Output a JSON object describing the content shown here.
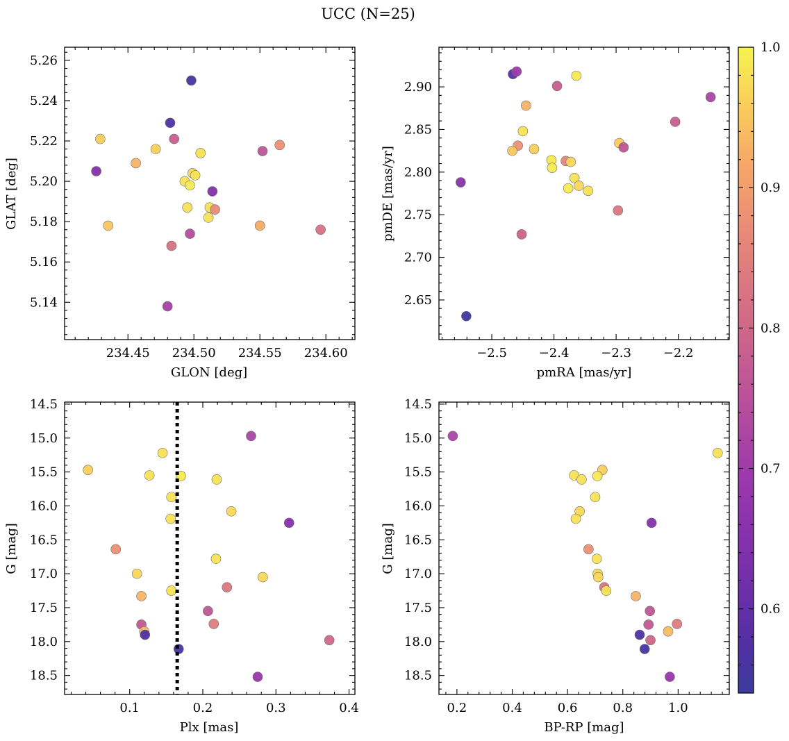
{
  "figure": {
    "title": "UCC (N=25)",
    "colormap": "plasma",
    "colorbar": {
      "min": 0.54,
      "max": 1.0,
      "ticks": [
        0.6,
        0.7,
        0.8,
        0.9,
        1.0
      ],
      "tick_labels": [
        "0.6",
        "0.7",
        "0.8",
        "0.9",
        "1.0"
      ]
    }
  },
  "chart_data": [
    {
      "id": "glon_glat",
      "type": "scatter",
      "xlabel": "GLON [deg]",
      "ylabel": "GLAT [deg]",
      "xlim": [
        234.402,
        234.622
      ],
      "ylim": [
        5.1215,
        5.2665
      ],
      "xticks": [
        234.45,
        234.5,
        234.55,
        234.6
      ],
      "xtick_labels": [
        "234.45",
        "234.50",
        "234.55",
        "234.60"
      ],
      "yticks": [
        5.14,
        5.16,
        5.18,
        5.2,
        5.22,
        5.24,
        5.26
      ],
      "ytick_labels": [
        "5.14",
        "5.16",
        "5.18",
        "5.20",
        "5.22",
        "5.24",
        "5.26"
      ],
      "points": [
        {
          "x": 234.498,
          "y": 5.25,
          "c": 0.56
        },
        {
          "x": 234.482,
          "y": 5.229,
          "c": 0.57
        },
        {
          "x": 234.426,
          "y": 5.205,
          "c": 0.65
        },
        {
          "x": 234.429,
          "y": 5.221,
          "c": 0.96
        },
        {
          "x": 234.485,
          "y": 5.221,
          "c": 0.78
        },
        {
          "x": 234.471,
          "y": 5.216,
          "c": 0.96
        },
        {
          "x": 234.505,
          "y": 5.214,
          "c": 0.98
        },
        {
          "x": 234.552,
          "y": 5.215,
          "c": 0.76
        },
        {
          "x": 234.565,
          "y": 5.218,
          "c": 0.88
        },
        {
          "x": 234.456,
          "y": 5.209,
          "c": 0.93
        },
        {
          "x": 234.499,
          "y": 5.204,
          "c": 0.97
        },
        {
          "x": 234.501,
          "y": 5.203,
          "c": 0.98
        },
        {
          "x": 234.493,
          "y": 5.2,
          "c": 0.98
        },
        {
          "x": 234.497,
          "y": 5.198,
          "c": 0.99
        },
        {
          "x": 234.514,
          "y": 5.195,
          "c": 0.65
        },
        {
          "x": 234.495,
          "y": 5.187,
          "c": 0.98
        },
        {
          "x": 234.512,
          "y": 5.187,
          "c": 0.98
        },
        {
          "x": 234.516,
          "y": 5.186,
          "c": 0.87
        },
        {
          "x": 234.511,
          "y": 5.182,
          "c": 0.98
        },
        {
          "x": 234.435,
          "y": 5.178,
          "c": 0.95
        },
        {
          "x": 234.55,
          "y": 5.178,
          "c": 0.92
        },
        {
          "x": 234.596,
          "y": 5.176,
          "c": 0.82
        },
        {
          "x": 234.497,
          "y": 5.174,
          "c": 0.74
        },
        {
          "x": 234.483,
          "y": 5.168,
          "c": 0.82
        },
        {
          "x": 234.48,
          "y": 5.138,
          "c": 0.71
        }
      ]
    },
    {
      "id": "pmra_pmde",
      "type": "scatter",
      "xlabel": "pmRA [mas/yr]",
      "ylabel": "pmDE [mas/yr]",
      "xlim": [
        -2.585,
        -2.118
      ],
      "ylim": [
        2.6035,
        2.9465
      ],
      "xticks": [
        -2.5,
        -2.4,
        -2.3,
        -2.2
      ],
      "xtick_labels": [
        "−2.5",
        "−2.4",
        "−2.3",
        "−2.2"
      ],
      "yticks": [
        2.65,
        2.7,
        2.75,
        2.8,
        2.85,
        2.9
      ],
      "ytick_labels": [
        "2.65",
        "2.70",
        "2.75",
        "2.80",
        "2.85",
        "2.90"
      ],
      "points": [
        {
          "x": -2.466,
          "y": 2.915,
          "c": 0.58
        },
        {
          "x": -2.46,
          "y": 2.918,
          "c": 0.7
        },
        {
          "x": -2.364,
          "y": 2.913,
          "c": 0.99
        },
        {
          "x": -2.395,
          "y": 2.901,
          "c": 0.78
        },
        {
          "x": -2.148,
          "y": 2.888,
          "c": 0.72
        },
        {
          "x": -2.445,
          "y": 2.878,
          "c": 0.93
        },
        {
          "x": -2.205,
          "y": 2.859,
          "c": 0.78
        },
        {
          "x": -2.45,
          "y": 2.848,
          "c": 0.98
        },
        {
          "x": -2.295,
          "y": 2.834,
          "c": 0.96
        },
        {
          "x": -2.288,
          "y": 2.829,
          "c": 0.76
        },
        {
          "x": -2.458,
          "y": 2.831,
          "c": 0.88
        },
        {
          "x": -2.467,
          "y": 2.825,
          "c": 0.95
        },
        {
          "x": -2.432,
          "y": 2.827,
          "c": 0.96
        },
        {
          "x": -2.404,
          "y": 2.814,
          "c": 0.99
        },
        {
          "x": -2.381,
          "y": 2.813,
          "c": 0.86
        },
        {
          "x": -2.373,
          "y": 2.812,
          "c": 0.97
        },
        {
          "x": -2.403,
          "y": 2.805,
          "c": 0.99
        },
        {
          "x": -2.367,
          "y": 2.793,
          "c": 0.98
        },
        {
          "x": -2.36,
          "y": 2.784,
          "c": 0.97
        },
        {
          "x": -2.377,
          "y": 2.781,
          "c": 0.99
        },
        {
          "x": -2.345,
          "y": 2.778,
          "c": 0.98
        },
        {
          "x": -2.55,
          "y": 2.788,
          "c": 0.66
        },
        {
          "x": -2.297,
          "y": 2.755,
          "c": 0.83
        },
        {
          "x": -2.452,
          "y": 2.727,
          "c": 0.79
        },
        {
          "x": -2.541,
          "y": 2.631,
          "c": 0.55
        }
      ]
    },
    {
      "id": "plx_g",
      "type": "scatter",
      "xlabel": "Plx [mas]",
      "ylabel": "G [mag]",
      "xlim": [
        0.011,
        0.408
      ],
      "ylim": [
        18.78,
        14.47
      ],
      "y_inverted": true,
      "xticks": [
        0.1,
        0.2,
        0.3,
        0.4
      ],
      "xtick_labels": [
        "0.1",
        "0.2",
        "0.3",
        "0.4"
      ],
      "yticks": [
        14.5,
        15.0,
        15.5,
        16.0,
        16.5,
        17.0,
        17.5,
        18.0,
        18.5
      ],
      "ytick_labels": [
        "14.5",
        "15.0",
        "15.5",
        "16.0",
        "16.5",
        "17.0",
        "17.5",
        "18.0",
        "18.5"
      ],
      "vline": {
        "x": 0.165,
        "style": "dotted"
      },
      "points": [
        {
          "x": 0.266,
          "y": 14.97,
          "c": 0.72
        },
        {
          "x": 0.145,
          "y": 15.22,
          "c": 0.98
        },
        {
          "x": 0.043,
          "y": 15.47,
          "c": 0.96
        },
        {
          "x": 0.127,
          "y": 15.55,
          "c": 0.98
        },
        {
          "x": 0.17,
          "y": 15.56,
          "c": 0.99
        },
        {
          "x": 0.219,
          "y": 15.61,
          "c": 0.98
        },
        {
          "x": 0.157,
          "y": 15.87,
          "c": 0.98
        },
        {
          "x": 0.239,
          "y": 16.08,
          "c": 0.97
        },
        {
          "x": 0.156,
          "y": 16.19,
          "c": 0.98
        },
        {
          "x": 0.318,
          "y": 16.25,
          "c": 0.65
        },
        {
          "x": 0.081,
          "y": 16.64,
          "c": 0.88
        },
        {
          "x": 0.218,
          "y": 16.78,
          "c": 0.98
        },
        {
          "x": 0.11,
          "y": 17.0,
          "c": 0.97
        },
        {
          "x": 0.282,
          "y": 17.05,
          "c": 0.97
        },
        {
          "x": 0.233,
          "y": 17.2,
          "c": 0.83
        },
        {
          "x": 0.157,
          "y": 17.25,
          "c": 0.98
        },
        {
          "x": 0.116,
          "y": 17.33,
          "c": 0.93
        },
        {
          "x": 0.207,
          "y": 17.55,
          "c": 0.76
        },
        {
          "x": 0.215,
          "y": 17.74,
          "c": 0.84
        },
        {
          "x": 0.116,
          "y": 17.75,
          "c": 0.77
        },
        {
          "x": 0.12,
          "y": 17.85,
          "c": 0.94
        },
        {
          "x": 0.121,
          "y": 17.9,
          "c": 0.57
        },
        {
          "x": 0.373,
          "y": 17.98,
          "c": 0.8
        },
        {
          "x": 0.167,
          "y": 18.11,
          "c": 0.56
        },
        {
          "x": 0.275,
          "y": 18.52,
          "c": 0.69
        }
      ]
    },
    {
      "id": "bprp_g",
      "type": "scatter",
      "xlabel": "BP-RP [mag]",
      "ylabel": "G [mag]",
      "xlim": [
        0.135,
        1.185
      ],
      "ylim": [
        18.78,
        14.47
      ],
      "y_inverted": true,
      "xticks": [
        0.2,
        0.4,
        0.6,
        0.8,
        1.0
      ],
      "xtick_labels": [
        "0.2",
        "0.4",
        "0.6",
        "0.8",
        "1.0"
      ],
      "yticks": [
        14.5,
        15.0,
        15.5,
        16.0,
        16.5,
        17.0,
        17.5,
        18.0,
        18.5
      ],
      "ytick_labels": [
        "14.5",
        "15.0",
        "15.5",
        "16.0",
        "16.5",
        "17.0",
        "17.5",
        "18.0",
        "18.5"
      ],
      "points": [
        {
          "x": 0.185,
          "y": 14.97,
          "c": 0.72
        },
        {
          "x": 1.143,
          "y": 15.22,
          "c": 0.98
        },
        {
          "x": 0.726,
          "y": 15.47,
          "c": 0.96
        },
        {
          "x": 0.624,
          "y": 15.55,
          "c": 0.98
        },
        {
          "x": 0.708,
          "y": 15.56,
          "c": 0.99
        },
        {
          "x": 0.651,
          "y": 15.61,
          "c": 0.98
        },
        {
          "x": 0.7,
          "y": 15.87,
          "c": 0.98
        },
        {
          "x": 0.644,
          "y": 16.08,
          "c": 0.97
        },
        {
          "x": 0.63,
          "y": 16.19,
          "c": 0.98
        },
        {
          "x": 0.904,
          "y": 16.25,
          "c": 0.65
        },
        {
          "x": 0.676,
          "y": 16.64,
          "c": 0.88
        },
        {
          "x": 0.706,
          "y": 16.78,
          "c": 0.98
        },
        {
          "x": 0.709,
          "y": 17.0,
          "c": 0.97
        },
        {
          "x": 0.711,
          "y": 17.05,
          "c": 0.97
        },
        {
          "x": 0.733,
          "y": 17.2,
          "c": 0.83
        },
        {
          "x": 0.74,
          "y": 17.25,
          "c": 0.98
        },
        {
          "x": 0.847,
          "y": 17.33,
          "c": 0.93
        },
        {
          "x": 0.898,
          "y": 17.55,
          "c": 0.76
        },
        {
          "x": 0.996,
          "y": 17.74,
          "c": 0.84
        },
        {
          "x": 0.893,
          "y": 17.75,
          "c": 0.77
        },
        {
          "x": 0.964,
          "y": 17.85,
          "c": 0.94
        },
        {
          "x": 0.861,
          "y": 17.9,
          "c": 0.57
        },
        {
          "x": 0.9,
          "y": 17.98,
          "c": 0.8
        },
        {
          "x": 0.879,
          "y": 18.11,
          "c": 0.56
        },
        {
          "x": 0.97,
          "y": 18.52,
          "c": 0.69
        }
      ]
    }
  ]
}
